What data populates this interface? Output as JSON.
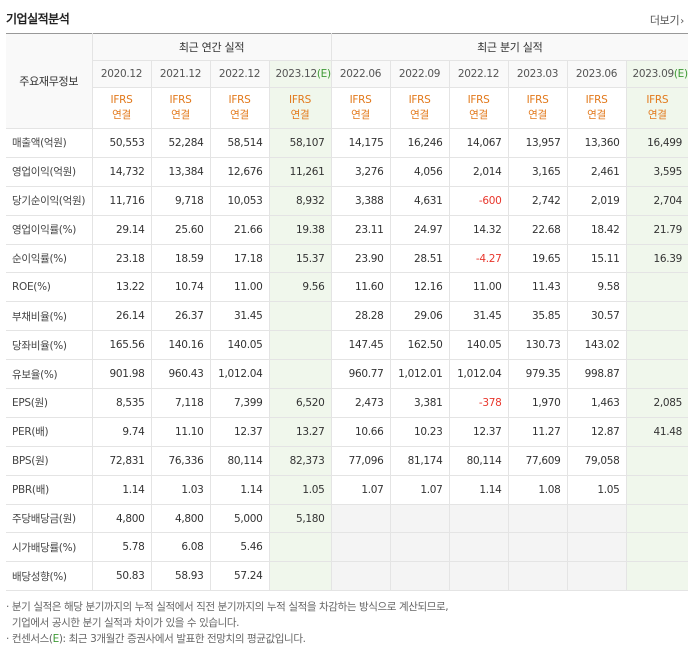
{
  "header": {
    "title": "기업실적분석",
    "more_label": "더보기"
  },
  "groups": {
    "rowhead": "주요재무정보",
    "annual": "최근 연간 실적",
    "quarterly": "최근 분기 실적"
  },
  "periods": {
    "annual": [
      "2020.12",
      "2021.12",
      "2022.12",
      "2023.12"
    ],
    "quarterly": [
      "2022.06",
      "2022.09",
      "2022.12",
      "2023.03",
      "2023.06",
      "2023.09"
    ],
    "estimate_mark": "(E)"
  },
  "ifrs": {
    "line1": "IFRS",
    "line2": "연결"
  },
  "colors": {
    "accent_orange": "#e2791c",
    "estimate_bg": "#f0f7ec",
    "negative_red": "#e8362c",
    "estimate_green": "#3e9a35"
  },
  "rows": [
    {
      "label": "매출액(억원)",
      "v": [
        "50,553",
        "52,284",
        "58,514",
        "58,107",
        "14,175",
        "16,246",
        "14,067",
        "13,957",
        "13,360",
        "16,499"
      ]
    },
    {
      "label": "영업이익(억원)",
      "v": [
        "14,732",
        "13,384",
        "12,676",
        "11,261",
        "3,276",
        "4,056",
        "2,014",
        "3,165",
        "2,461",
        "3,595"
      ]
    },
    {
      "label": "당기순이익(억원)",
      "v": [
        "11,716",
        "9,718",
        "10,053",
        "8,932",
        "3,388",
        "4,631",
        "-600",
        "2,742",
        "2,019",
        "2,704"
      ]
    },
    {
      "label": "영업이익률(%)",
      "v": [
        "29.14",
        "25.60",
        "21.66",
        "19.38",
        "23.11",
        "24.97",
        "14.32",
        "22.68",
        "18.42",
        "21.79"
      ]
    },
    {
      "label": "순이익률(%)",
      "v": [
        "23.18",
        "18.59",
        "17.18",
        "15.37",
        "23.90",
        "28.51",
        "-4.27",
        "19.65",
        "15.11",
        "16.39"
      ]
    },
    {
      "label": "ROE(%)",
      "v": [
        "13.22",
        "10.74",
        "11.00",
        "9.56",
        "11.60",
        "12.16",
        "11.00",
        "11.43",
        "9.58",
        ""
      ]
    },
    {
      "label": "부채비율(%)",
      "v": [
        "26.14",
        "26.37",
        "31.45",
        "",
        "28.28",
        "29.06",
        "31.45",
        "35.85",
        "30.57",
        ""
      ]
    },
    {
      "label": "당좌비율(%)",
      "v": [
        "165.56",
        "140.16",
        "140.05",
        "",
        "147.45",
        "162.50",
        "140.05",
        "130.73",
        "143.02",
        ""
      ]
    },
    {
      "label": "유보율(%)",
      "v": [
        "901.98",
        "960.43",
        "1,012.04",
        "",
        "960.77",
        "1,012.01",
        "1,012.04",
        "979.35",
        "998.87",
        ""
      ]
    },
    {
      "label": "EPS(원)",
      "v": [
        "8,535",
        "7,118",
        "7,399",
        "6,520",
        "2,473",
        "3,381",
        "-378",
        "1,970",
        "1,463",
        "2,085"
      ]
    },
    {
      "label": "PER(배)",
      "v": [
        "9.74",
        "11.10",
        "12.37",
        "13.27",
        "10.66",
        "10.23",
        "12.37",
        "11.27",
        "12.87",
        "41.48"
      ]
    },
    {
      "label": "BPS(원)",
      "v": [
        "72,831",
        "76,336",
        "80,114",
        "82,373",
        "77,096",
        "81,174",
        "80,114",
        "77,609",
        "79,058",
        ""
      ]
    },
    {
      "label": "PBR(배)",
      "v": [
        "1.14",
        "1.03",
        "1.14",
        "1.05",
        "1.07",
        "1.07",
        "1.14",
        "1.08",
        "1.05",
        ""
      ]
    },
    {
      "label": "주당배당금(원)",
      "v": [
        "4,800",
        "4,800",
        "5,000",
        "5,180",
        "",
        "",
        "",
        "",
        "",
        ""
      ]
    },
    {
      "label": "시가배당률(%)",
      "v": [
        "5.78",
        "6.08",
        "5.46",
        "",
        "",
        "",
        "",
        "",
        "",
        ""
      ]
    },
    {
      "label": "배당성향(%)",
      "v": [
        "50.83",
        "58.93",
        "57.24",
        "",
        "",
        "",
        "",
        "",
        "",
        ""
      ]
    }
  ],
  "notes": {
    "line1": "· 분기 실적은 해당 분기까지의 누적 실적에서 직전 분기까지의 누적 실적을 차감하는 방식으로 계산되므로,",
    "line2": "  기업에서 공시한 분기 실적과 차이가 있을 수 있습니다.",
    "line3_pre": "· 컨센서스(",
    "line3_e": "E",
    "line3_post": "): 최근 3개월간 증권사에서 발표한 전망치의 평균값입니다."
  }
}
